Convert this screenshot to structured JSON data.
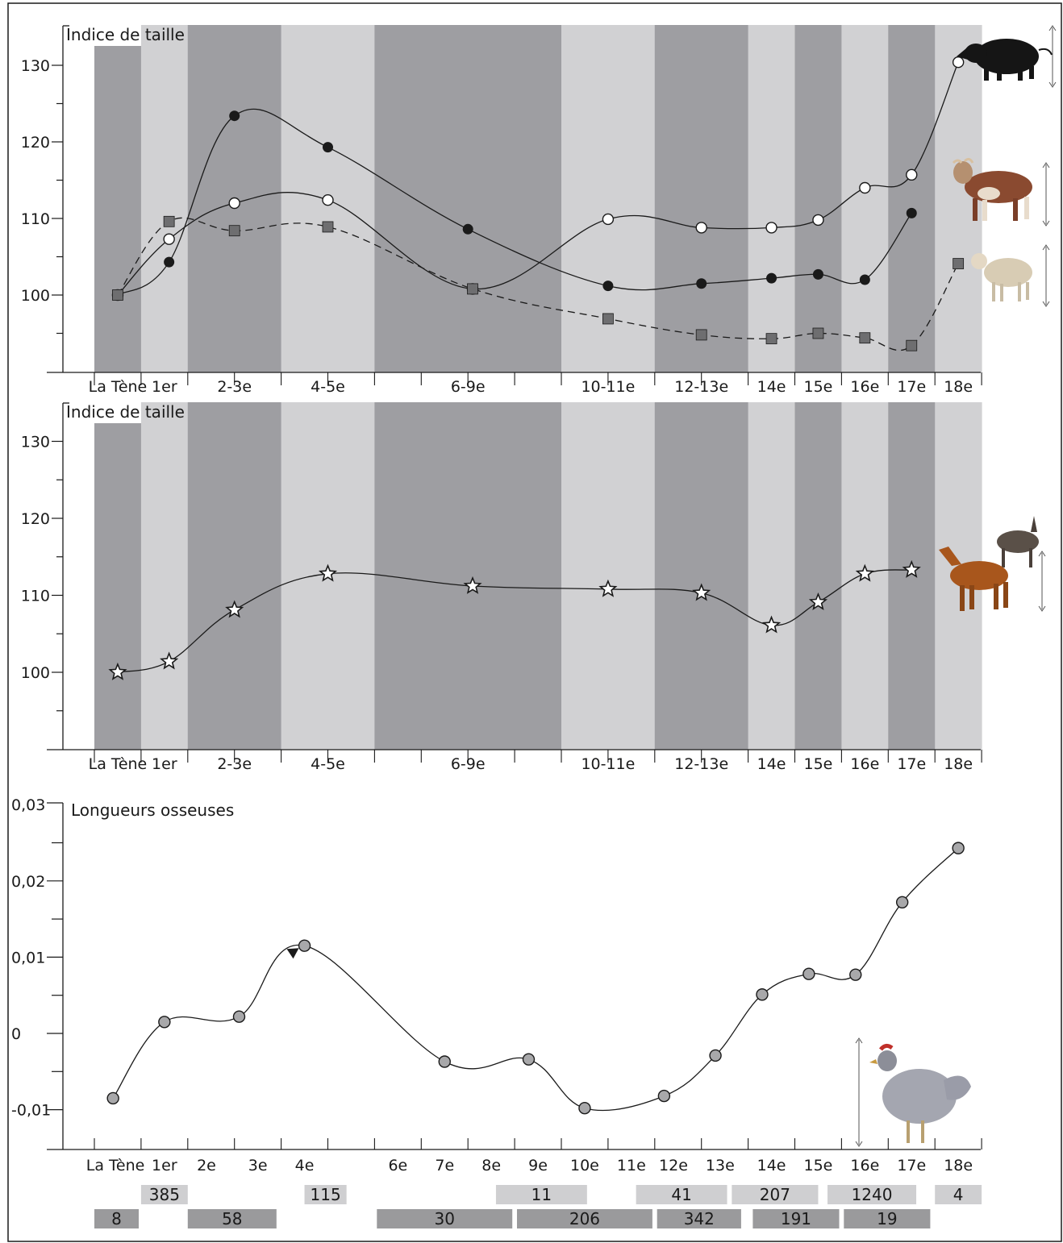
{
  "colors": {
    "band_dark": "#9e9ea2",
    "band_light": "#d1d1d3",
    "count_dark": "#9a9a9c",
    "count_light": "#cfcfd1",
    "pig_marker": "#ffffff",
    "cattle_marker": "#1a1a1a",
    "sheep_marker": "#6e6e70",
    "equid_marker": "#ffffff",
    "chicken_marker": "#a8a8aa",
    "line": "#1a1a1a"
  },
  "chart_data": [
    {
      "type": "line",
      "title": "Indice de taille",
      "yticks": [
        "100",
        "110",
        "120",
        "130"
      ],
      "ylim": [
        90,
        135
      ],
      "periods": [
        "La Tène",
        "1er",
        "2-3e",
        "4-5e",
        "6-9e",
        "10-11e",
        "12-13e",
        "14e",
        "15e",
        "16e",
        "17e",
        "18e"
      ],
      "bands": [
        {
          "from": 0,
          "to": 1,
          "shade": "dark"
        },
        {
          "from": 1,
          "to": 2,
          "shade": "light"
        },
        {
          "from": 2,
          "to": 4,
          "shade": "dark"
        },
        {
          "from": 4,
          "to": 6,
          "shade": "light"
        },
        {
          "from": 6,
          "to": 10,
          "shade": "dark"
        },
        {
          "from": 10,
          "to": 12,
          "shade": "light"
        },
        {
          "from": 12,
          "to": 14,
          "shade": "dark"
        },
        {
          "from": 14,
          "to": 15,
          "shade": "light"
        },
        {
          "from": 15,
          "to": 16,
          "shade": "dark"
        },
        {
          "from": 16,
          "to": 17,
          "shade": "light"
        },
        {
          "from": 17,
          "to": 18,
          "shade": "dark"
        },
        {
          "from": 18,
          "to": 19,
          "shade": "light"
        }
      ],
      "series": [
        {
          "marker": "circle-open",
          "dash": false,
          "icon": "pig-icon",
          "x": [
            0.5,
            1.6,
            3,
            5,
            8.1,
            11,
            13,
            14.5,
            15.5,
            16.5,
            17.5,
            18.5
          ],
          "values": [
            100,
            107.3,
            112,
            112.4,
            100.8,
            109.9,
            108.8,
            108.8,
            109.8,
            114,
            115.7,
            130.4
          ]
        },
        {
          "marker": "circle-filled",
          "dash": false,
          "icon": "cow-icon",
          "x": [
            0.5,
            1.6,
            3,
            5,
            8,
            11,
            13,
            14.5,
            15.5,
            16.5,
            17.5
          ],
          "values": [
            100,
            104.3,
            123.4,
            119.3,
            108.6,
            101.2,
            101.5,
            102.2,
            102.7,
            102,
            110.7
          ]
        },
        {
          "marker": "square",
          "dash": true,
          "icon": "sheep-icon",
          "x": [
            0.5,
            1.6,
            3,
            5,
            8.1,
            11,
            13,
            14.5,
            15.5,
            16.5,
            17.5,
            18.5
          ],
          "values": [
            100,
            109.6,
            108.4,
            108.9,
            100.8,
            96.9,
            94.8,
            94.3,
            95,
            94.4,
            93.4,
            104.1
          ]
        }
      ]
    },
    {
      "type": "line",
      "title": "Indice de taille",
      "yticks": [
        "100",
        "110",
        "120",
        "130"
      ],
      "ylim": [
        90,
        135
      ],
      "periods": [
        "La Tène",
        "1er",
        "2-3e",
        "4-5e",
        "6-9e",
        "10-11e",
        "12-13e",
        "14e",
        "15e",
        "16e",
        "17e",
        "18e"
      ],
      "series": [
        {
          "marker": "star",
          "dash": false,
          "icon": "horse-donkey-icon",
          "x": [
            0.5,
            1.6,
            3,
            5,
            8.1,
            11,
            13,
            14.5,
            15.5,
            16.5,
            17.5
          ],
          "values": [
            100,
            101.4,
            108.1,
            112.8,
            111.2,
            110.8,
            110.3,
            106.1,
            109.1,
            112.8,
            113.3
          ]
        }
      ]
    },
    {
      "type": "line",
      "title": "Longueurs osseuses",
      "yticks": [
        "-0,01",
        "0",
        "0,01",
        "0,02",
        "0,03"
      ],
      "ylim": [
        -0.0147,
        0.03
      ],
      "periods": [
        "La Tène",
        "1er",
        "2e",
        "3e",
        "4e",
        "6e",
        "7e",
        "8e",
        "9e",
        "10e",
        "11e",
        "12e",
        "13e",
        "14e",
        "15e",
        "16e",
        "17e",
        "18e"
      ],
      "series": [
        {
          "marker": "circle-grey",
          "dash": false,
          "icon": "chicken-icon",
          "x": [
            0.4,
            1.5,
            3.1,
            4.5,
            7.5,
            9.3,
            10.5,
            12.2,
            13.3,
            14.3,
            15.3,
            16.3,
            17.3,
            18.5
          ],
          "values": [
            -0.0085,
            0.0015,
            0.0022,
            0.0115,
            -0.0037,
            -0.0034,
            -0.0098,
            -0.0082,
            -0.0029,
            0.0051,
            0.0078,
            0.0077,
            0.0172,
            0.0243
          ]
        }
      ],
      "sample_counts": {
        "top": [
          {
            "label": "385",
            "from": 1,
            "to": 2
          },
          {
            "label": "115",
            "from": 4.5,
            "to": 5.4
          },
          {
            "label": "11",
            "from": 8.6,
            "to": 10.55
          },
          {
            "label": "41",
            "from": 11.6,
            "to": 13.55
          },
          {
            "label": "207",
            "from": 13.65,
            "to": 15.5
          },
          {
            "label": "1240",
            "from": 15.7,
            "to": 17.6
          },
          {
            "label": "4",
            "from": 18,
            "to": 19
          }
        ],
        "bottom": [
          {
            "label": "8",
            "from": 0,
            "to": 0.95
          },
          {
            "label": "58",
            "from": 2,
            "to": 3.9
          },
          {
            "label": "30",
            "from": 6.05,
            "to": 8.95
          },
          {
            "label": "206",
            "from": 9.05,
            "to": 11.95
          },
          {
            "label": "342",
            "from": 12.05,
            "to": 13.85
          },
          {
            "label": "191",
            "from": 14.1,
            "to": 15.95
          },
          {
            "label": "19",
            "from": 16.05,
            "to": 17.9
          }
        ]
      }
    }
  ]
}
